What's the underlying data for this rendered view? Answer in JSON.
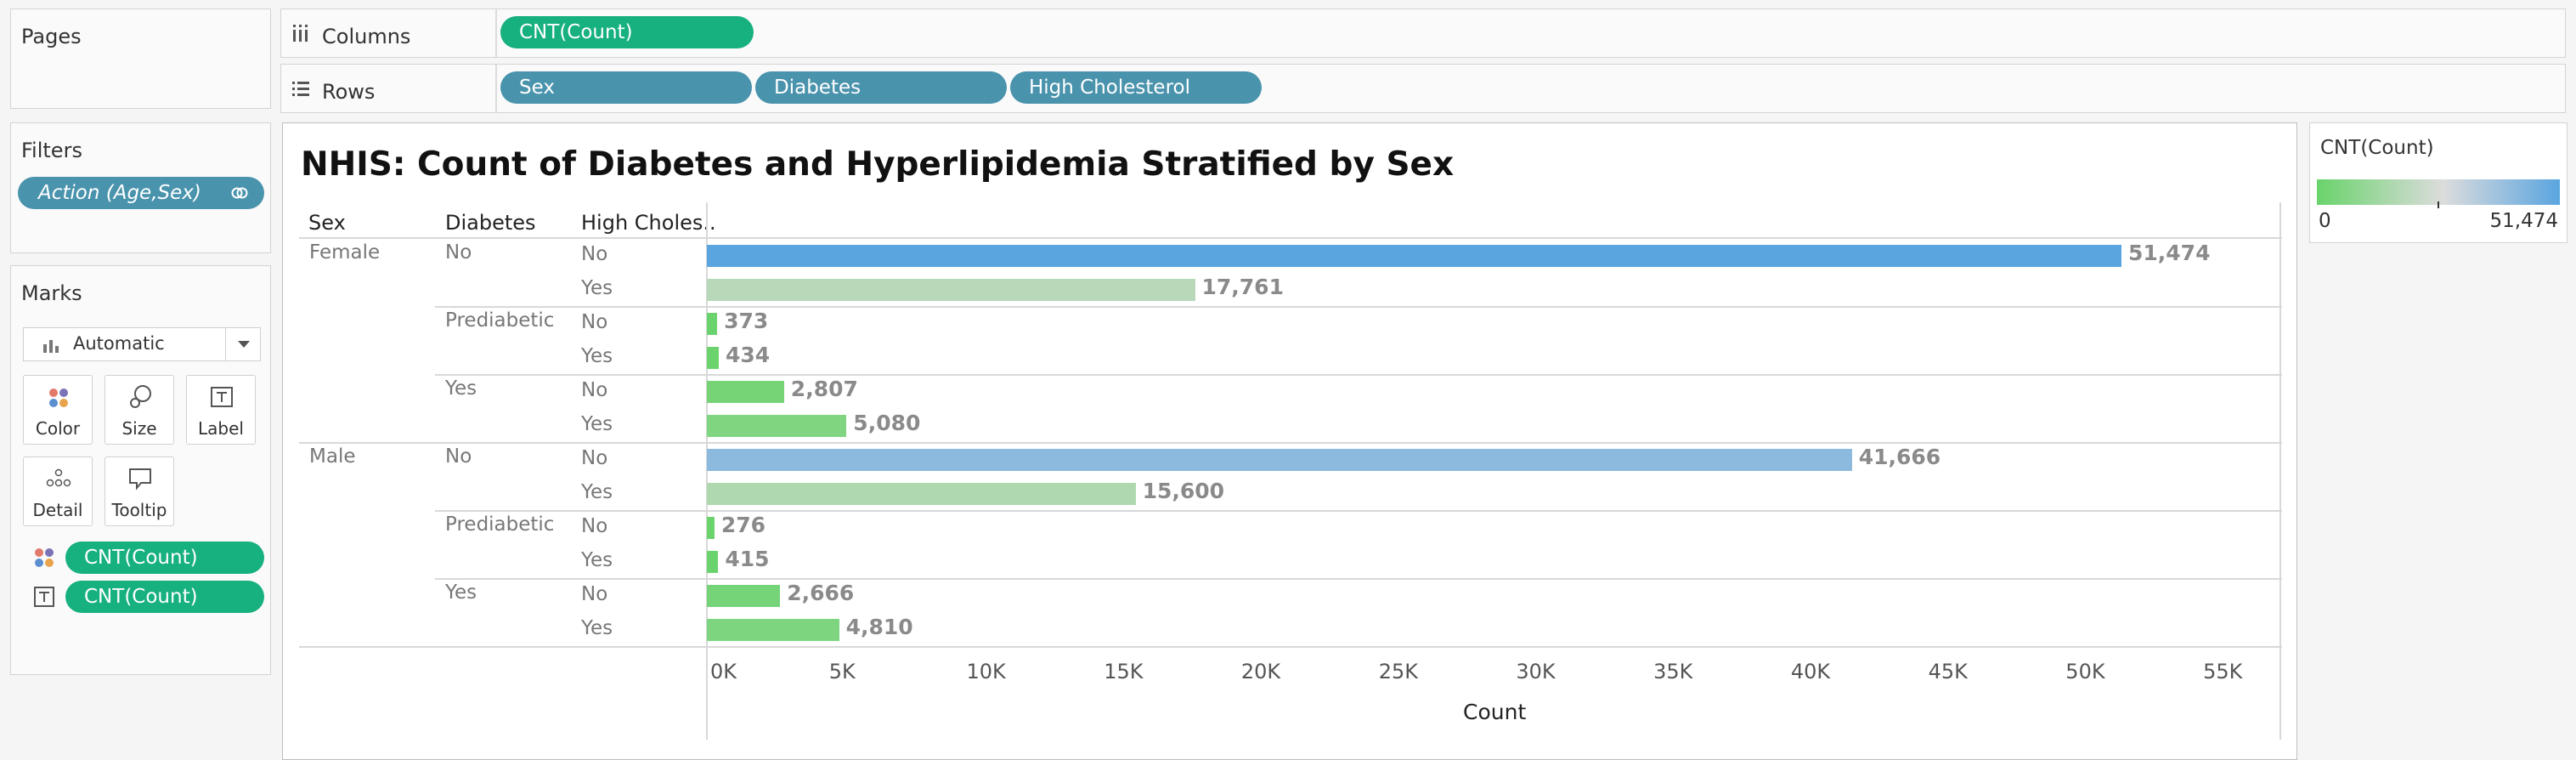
{
  "pages_panel": {
    "title": "Pages"
  },
  "columns_shelf": {
    "label": "Columns",
    "pills": [
      "CNT(Count)"
    ]
  },
  "rows_shelf": {
    "label": "Rows",
    "pills": [
      "Sex",
      "Diabetes",
      "High Cholesterol"
    ]
  },
  "filters_panel": {
    "title": "Filters",
    "pill": "Action (Age,Sex)"
  },
  "marks_panel": {
    "title": "Marks",
    "mark_type": "Automatic",
    "cards": [
      {
        "label": "Color",
        "icon": "color-dots-icon"
      },
      {
        "label": "Size",
        "icon": "size-circles-icon"
      },
      {
        "label": "Label",
        "icon": "text-label-icon"
      },
      {
        "label": "Detail",
        "icon": "detail-dots-icon"
      },
      {
        "label": "Tooltip",
        "icon": "tooltip-bubble-icon"
      }
    ],
    "encodings": [
      {
        "icon": "color-dots-icon",
        "pill": "CNT(Count)"
      },
      {
        "icon": "text-label-icon",
        "pill": "CNT(Count)"
      }
    ]
  },
  "legend": {
    "title": "CNT(Count)",
    "min": "0",
    "max": "51,474",
    "color_low": "#69d36b",
    "color_mid": "#dcdcdc",
    "color_high": "#5aa5e0"
  },
  "view": {
    "title": "NHIS: Count of Diabetes and Hyperlipidemia Stratified by Sex",
    "headers": [
      "Sex",
      "Diabetes",
      "High Choles.."
    ],
    "x_axis_title": "Count"
  },
  "chart_data": {
    "type": "bar",
    "orientation": "horizontal",
    "title": "NHIS: Count of Diabetes and Hyperlipidemia Stratified by Sex",
    "xlabel": "Count",
    "xlim": [
      0,
      57500
    ],
    "x_ticks": [
      "0K",
      "5K",
      "10K",
      "15K",
      "20K",
      "25K",
      "30K",
      "35K",
      "40K",
      "45K",
      "50K",
      "55K"
    ],
    "grid": false,
    "color_scale": {
      "min": 0,
      "max": 51474
    },
    "groups": [
      {
        "sex": "Female",
        "diabetes": "No",
        "rows": [
          {
            "high_cholesterol": "No",
            "value": 51474,
            "label": "51,474"
          },
          {
            "high_cholesterol": "Yes",
            "value": 17761,
            "label": "17,761"
          }
        ]
      },
      {
        "sex": "",
        "diabetes": "Prediabetic",
        "rows": [
          {
            "high_cholesterol": "No",
            "value": 373,
            "label": "373"
          },
          {
            "high_cholesterol": "Yes",
            "value": 434,
            "label": "434"
          }
        ]
      },
      {
        "sex": "",
        "diabetes": "Yes",
        "rows": [
          {
            "high_cholesterol": "No",
            "value": 2807,
            "label": "2,807"
          },
          {
            "high_cholesterol": "Yes",
            "value": 5080,
            "label": "5,080"
          }
        ]
      },
      {
        "sex": "Male",
        "diabetes": "No",
        "rows": [
          {
            "high_cholesterol": "No",
            "value": 41666,
            "label": "41,666"
          },
          {
            "high_cholesterol": "Yes",
            "value": 15600,
            "label": "15,600"
          }
        ]
      },
      {
        "sex": "",
        "diabetes": "Prediabetic",
        "rows": [
          {
            "high_cholesterol": "No",
            "value": 276,
            "label": "276"
          },
          {
            "high_cholesterol": "Yes",
            "value": 415,
            "label": "415"
          }
        ]
      },
      {
        "sex": "",
        "diabetes": "Yes",
        "rows": [
          {
            "high_cholesterol": "No",
            "value": 2666,
            "label": "2,666"
          },
          {
            "high_cholesterol": "Yes",
            "value": 4810,
            "label": "4,810"
          }
        ]
      }
    ]
  }
}
